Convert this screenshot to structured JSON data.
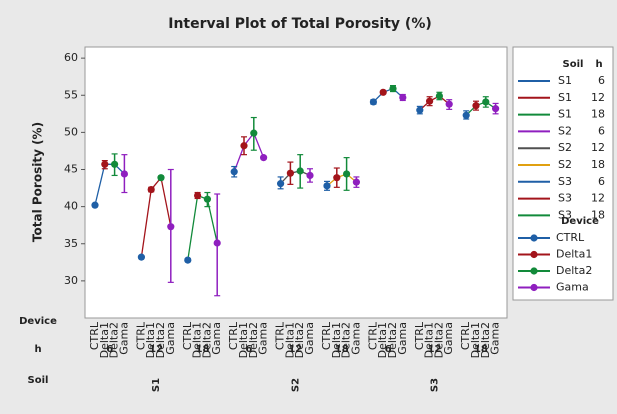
{
  "chart_data": {
    "type": "interval",
    "title": "Interval Plot of Total Porosity (%)",
    "y_label": "Total Porosity (%)",
    "row_labels": [
      "Device",
      "h",
      "Soil"
    ],
    "ylim": [
      25,
      61.5
    ],
    "yticks": [
      30,
      35,
      40,
      45,
      50,
      55,
      60
    ],
    "legend_headers": [
      "Soil",
      "h"
    ],
    "device_header": "Device",
    "devices": [
      "CTRL",
      "Delta1",
      "Delta2",
      "Gama"
    ],
    "device_colors": [
      "#1f5fa6",
      "#a3141b",
      "#128a3a",
      "#8f1fbf"
    ],
    "groups": [
      {
        "soil": "S1",
        "h": 6,
        "color": "#1f5fa6",
        "values": [
          40.2,
          45.7,
          45.7,
          44.4
        ],
        "lower": [
          40.0,
          45.1,
          44.2,
          41.9
        ],
        "upper": [
          40.4,
          46.2,
          47.1,
          47.0
        ]
      },
      {
        "soil": "S1",
        "h": 12,
        "color": "#a3141b",
        "values": [
          33.2,
          42.3,
          43.9,
          37.3
        ],
        "lower": [
          33.0,
          42.0,
          43.7,
          29.8
        ],
        "upper": [
          33.4,
          42.6,
          44.1,
          45.0
        ]
      },
      {
        "soil": "S1",
        "h": 18,
        "color": "#128a3a",
        "values": [
          32.8,
          41.5,
          41.0,
          35.1
        ],
        "lower": [
          32.6,
          41.1,
          40.0,
          28.0
        ],
        "upper": [
          33.0,
          41.9,
          41.9,
          41.7
        ]
      },
      {
        "soil": "S2",
        "h": 6,
        "color": "#8f1fbf",
        "values": [
          44.7,
          48.2,
          49.9,
          46.6
        ],
        "lower": [
          44.0,
          47.0,
          47.6,
          46.4
        ],
        "upper": [
          45.4,
          49.4,
          52.0,
          46.8
        ]
      },
      {
        "soil": "S2",
        "h": 12,
        "color": "#505050",
        "values": [
          43.1,
          44.5,
          44.8,
          44.2
        ],
        "lower": [
          42.4,
          43.0,
          42.5,
          43.3
        ],
        "upper": [
          44.0,
          46.0,
          47.0,
          45.1
        ]
      },
      {
        "soil": "S2",
        "h": 18,
        "color": "#e0a010",
        "values": [
          42.8,
          43.9,
          44.4,
          43.3
        ],
        "lower": [
          42.2,
          42.6,
          42.2,
          42.6
        ],
        "upper": [
          43.4,
          45.2,
          46.6,
          44.0
        ]
      },
      {
        "soil": "S3",
        "h": 6,
        "color": "#1f5fa6",
        "values": [
          54.1,
          55.4,
          55.9,
          54.7
        ],
        "lower": [
          53.8,
          55.2,
          55.5,
          54.3
        ],
        "upper": [
          54.4,
          55.6,
          56.3,
          55.1
        ]
      },
      {
        "soil": "S3",
        "h": 12,
        "color": "#a3141b",
        "values": [
          53.0,
          54.2,
          54.9,
          53.8
        ],
        "lower": [
          52.5,
          53.6,
          54.4,
          53.1
        ],
        "upper": [
          53.5,
          54.8,
          55.4,
          54.4
        ]
      },
      {
        "soil": "S3",
        "h": 18,
        "color": "#128a3a",
        "values": [
          52.3,
          53.6,
          54.1,
          53.2
        ],
        "lower": [
          51.8,
          53.0,
          53.4,
          52.5
        ],
        "upper": [
          52.9,
          54.2,
          54.8,
          53.9
        ]
      }
    ]
  }
}
